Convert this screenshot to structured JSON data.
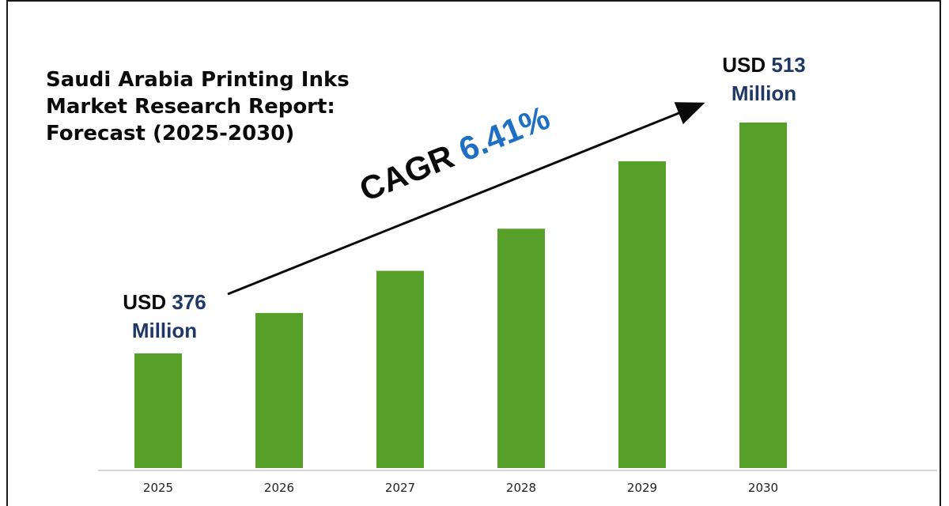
{
  "title_lines": [
    "Saudi Arabia Printing Inks",
    "Market Research Report:",
    "Forecast (2025-2030)"
  ],
  "cagr": {
    "label": "CAGR",
    "value": "6.41%"
  },
  "start_callout": {
    "prefix": "USD",
    "value": "376",
    "unit": "Million"
  },
  "end_callout": {
    "prefix": "USD",
    "value": "513",
    "unit": "Million"
  },
  "colors": {
    "bar": "#56a02a",
    "value_text": "#1f3864",
    "cagr_value": "#1f6fc5",
    "axis": "#c9c9c9"
  },
  "chart_data": {
    "type": "bar",
    "categories": [
      "2025",
      "2026",
      "2027",
      "2028",
      "2029",
      "2030"
    ],
    "values": [
      376,
      400,
      425,
      450,
      490,
      513
    ],
    "ylabel": "",
    "xlabel": "",
    "unit": "USD Million",
    "grid": false,
    "annotations": [
      "CAGR 6.41%",
      "USD 376 Million",
      "USD 513 Million"
    ]
  }
}
